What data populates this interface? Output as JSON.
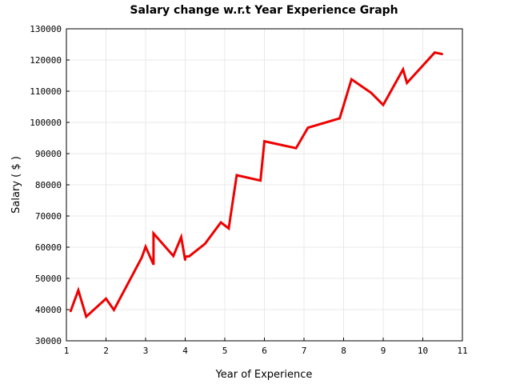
{
  "chart_data": {
    "type": "line",
    "title": "Salary change w.r.t Year Experience Graph",
    "xlabel": "Year of Experience",
    "ylabel": "Salary ( $ )",
    "xlim": [
      1,
      11
    ],
    "ylim": [
      30000,
      130000
    ],
    "x_ticks": [
      "1",
      "2",
      "3",
      "4",
      "5",
      "6",
      "7",
      "8",
      "9",
      "10",
      "11"
    ],
    "y_ticks": [
      "30000",
      "40000",
      "50000",
      "60000",
      "70000",
      "80000",
      "90000",
      "100000",
      "110000",
      "120000",
      "130000"
    ],
    "grid": true,
    "line_color": "#ee0000",
    "series": [
      {
        "x": [
          1.1,
          1.3,
          1.5,
          2.0,
          2.2,
          2.9,
          3.0,
          3.2,
          3.2,
          3.7,
          3.9,
          4.0,
          4.0,
          4.1,
          4.5,
          4.9,
          5.1,
          5.3,
          5.9,
          6.0,
          6.8,
          7.1,
          7.9,
          8.2,
          8.7,
          9.0,
          9.5,
          9.6,
          10.3,
          10.5
        ],
        "y": [
          39343,
          46205,
          37731,
          43525,
          39891,
          56642,
          60150,
          54445,
          64445,
          57189,
          63218,
          55794,
          56957,
          57081,
          61111,
          67938,
          66029,
          83088,
          81363,
          93940,
          91738,
          98273,
          101302,
          113812,
          109431,
          105582,
          116969,
          112635,
          122391,
          121872
        ]
      }
    ]
  }
}
